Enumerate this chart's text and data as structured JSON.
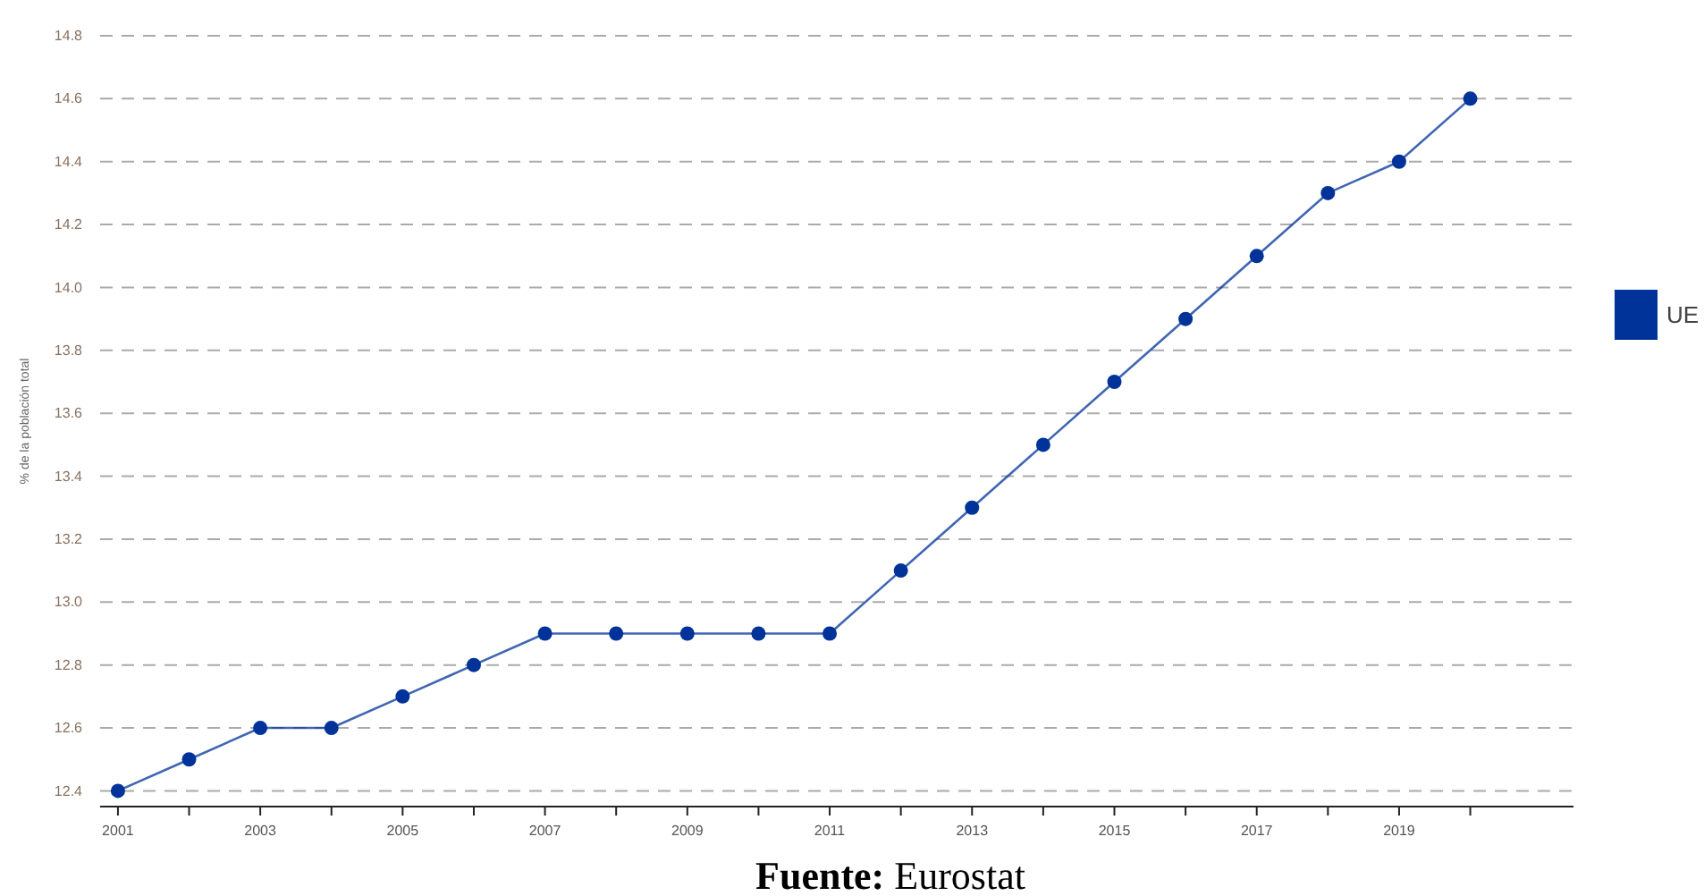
{
  "chart_data": {
    "type": "line",
    "ylabel": "% de la población total",
    "annotations": [
      "Fuente: Eurostat"
    ],
    "x": [
      2001,
      2002,
      2003,
      2004,
      2005,
      2006,
      2007,
      2008,
      2009,
      2010,
      2011,
      2012,
      2013,
      2014,
      2015,
      2016,
      2017,
      2018,
      2019,
      2020
    ],
    "series": [
      {
        "name": "UE",
        "color": "#003399",
        "values": [
          12.4,
          12.5,
          12.6,
          12.6,
          12.7,
          12.8,
          12.9,
          12.9,
          12.9,
          12.9,
          12.9,
          13.1,
          13.3,
          13.5,
          13.7,
          13.9,
          14.1,
          14.3,
          14.4,
          14.6
        ]
      }
    ],
    "xlim": [
      2000.75,
      2021.45
    ],
    "xticks": [
      2001,
      {
        "value": 2002,
        "label": null
      },
      2003,
      {
        "value": 2004,
        "label": null
      },
      2005,
      {
        "value": 2006,
        "label": null
      },
      2007,
      {
        "value": 2008,
        "label": null
      },
      2009,
      {
        "value": 2010,
        "label": null
      },
      2011,
      {
        "value": 2012,
        "label": null
      },
      2013,
      {
        "value": 2014,
        "label": null
      },
      2015,
      {
        "value": 2016,
        "label": null
      },
      2017,
      {
        "value": 2018,
        "label": null
      },
      2019,
      {
        "value": 2020,
        "label": null
      }
    ],
    "ylim": [
      12.35,
      14.8
    ],
    "yticks": [
      {
        "value": 12.4,
        "label": "12.4"
      },
      {
        "value": 12.6,
        "label": "12.6"
      },
      {
        "value": 12.8,
        "label": "12.8"
      },
      {
        "value": 13.0,
        "label": "13.0"
      },
      {
        "value": 13.2,
        "label": "13.2"
      },
      {
        "value": 13.4,
        "label": "13.4"
      },
      {
        "value": 13.6,
        "label": "13.6"
      },
      {
        "value": 13.8,
        "label": "13.8"
      },
      {
        "value": 14.0,
        "label": "14.0"
      },
      {
        "value": 14.2,
        "label": "14.2"
      },
      {
        "value": 14.4,
        "label": "14.4"
      },
      {
        "value": 14.6,
        "label": "14.6"
      },
      {
        "value": 14.8,
        "label": "14.8"
      }
    ],
    "grid": "y",
    "legend": "right",
    "marker": "circle",
    "line_style": "solid"
  }
}
